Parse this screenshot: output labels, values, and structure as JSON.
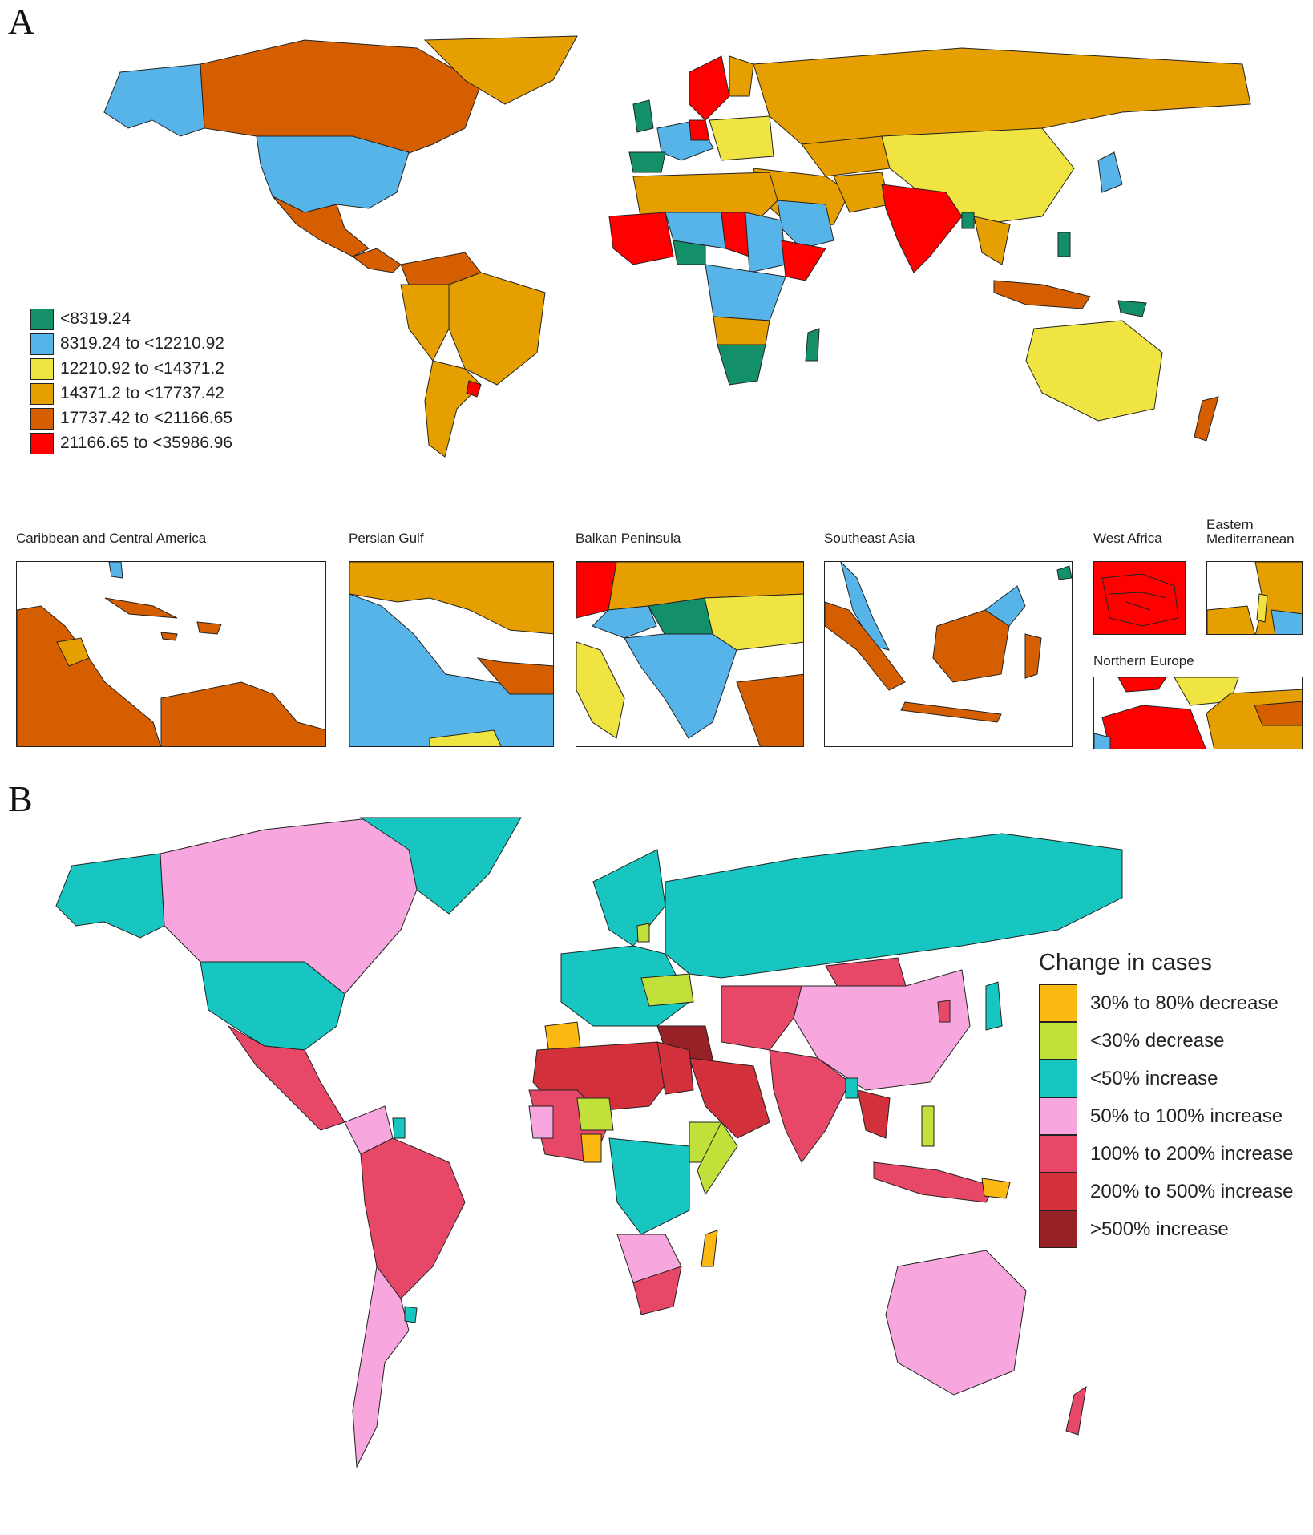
{
  "panels": {
    "a": {
      "letter": "A"
    },
    "b": {
      "letter": "B"
    }
  },
  "legend_a": {
    "items": [
      {
        "label": "<8319.24",
        "color": "#13906a"
      },
      {
        "label": "8319.24 to <12210.92",
        "color": "#56b4e9"
      },
      {
        "label": "12210.92 to <14371.2",
        "color": "#f0e442"
      },
      {
        "label": "14371.2 to <17737.42",
        "color": "#e69f00"
      },
      {
        "label": "17737.42 to <21166.65",
        "color": "#d55e00"
      },
      {
        "label": "21166.65 to <35986.96",
        "color": "#ff0000"
      }
    ]
  },
  "insets": {
    "caribbean": "Caribbean and Central America",
    "persian_gulf": "Persian Gulf",
    "balkan": "Balkan Peninsula",
    "southeast_asia": "Southeast Asia",
    "west_africa": "West Africa",
    "eastern_med": "Eastern\nMediterranean",
    "northern_europe": "Northern Europe"
  },
  "legend_b": {
    "title": "Change in  cases",
    "items": [
      {
        "label": "30% to 80% decrease",
        "color": "#fcb813"
      },
      {
        "label": "<30% decrease",
        "color": "#c2e03a"
      },
      {
        "label": "<50% increase",
        "color": "#17c6c0"
      },
      {
        "label": "50% to 100% increase",
        "color": "#f7a6de"
      },
      {
        "label": "100% to 200% increase",
        "color": "#e84868"
      },
      {
        "label": "200% to 500% increase",
        "color": "#d2303a"
      },
      {
        "label": ">500% increase",
        "color": "#962227"
      }
    ]
  }
}
